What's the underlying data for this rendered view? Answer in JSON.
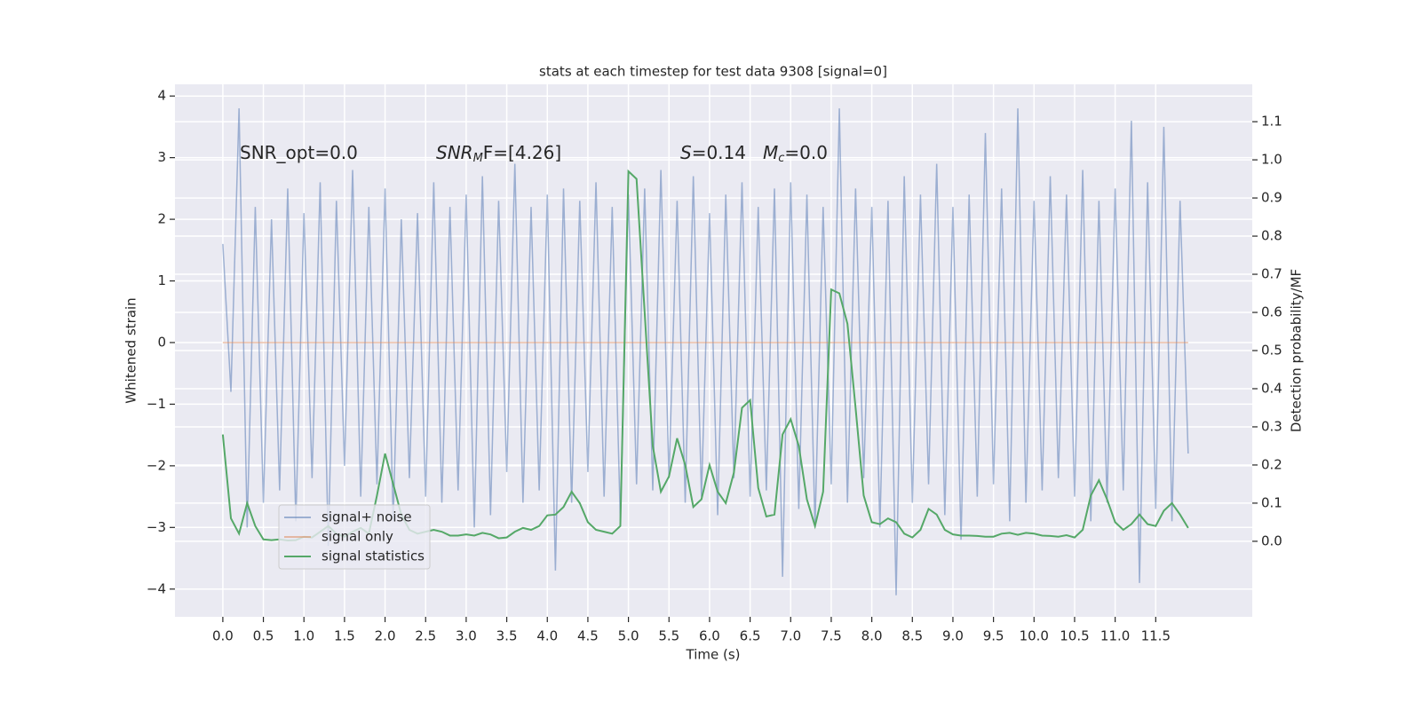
{
  "chart_data": {
    "type": "line",
    "title": "stats at each timestep for test data 9308 [signal=0]",
    "xlabel": "Time (s)",
    "ylabel": "Whitened strain",
    "y2label": "Detection probability/MF",
    "annotations": [
      [
        "SNR_opt=0.0"
      ],
      [
        "SNR",
        "M",
        "F=[4.26]"
      ],
      [
        "S",
        "=0.14"
      ],
      [
        "M",
        "c",
        "=0.0"
      ]
    ],
    "x": [
      0,
      0.1,
      0.2,
      0.3,
      0.4,
      0.5,
      0.6,
      0.7,
      0.8,
      0.9,
      1,
      1.1,
      1.2,
      1.3,
      1.4,
      1.5,
      1.6,
      1.7,
      1.8,
      1.9,
      2,
      2.1,
      2.2,
      2.3,
      2.4,
      2.5,
      2.6,
      2.7,
      2.8,
      2.9,
      3,
      3.1,
      3.2,
      3.3,
      3.4,
      3.5,
      3.6,
      3.7,
      3.8,
      3.9,
      4,
      4.1,
      4.2,
      4.3,
      4.4,
      4.5,
      4.6,
      4.7,
      4.8,
      4.9,
      5,
      5.1,
      5.2,
      5.3,
      5.4,
      5.5,
      5.6,
      5.7,
      5.8,
      5.9,
      6,
      6.1,
      6.2,
      6.3,
      6.4,
      6.5,
      6.6,
      6.7,
      6.8,
      6.9,
      7,
      7.1,
      7.2,
      7.3,
      7.4,
      7.5,
      7.6,
      7.7,
      7.8,
      7.9,
      8,
      8.1,
      8.2,
      8.3,
      8.4,
      8.5,
      8.6,
      8.7,
      8.8,
      8.9,
      9,
      9.1,
      9.2,
      9.3,
      9.4,
      9.5,
      9.6,
      9.7,
      9.8,
      9.9,
      10,
      10.1,
      10.2,
      10.3,
      10.4,
      10.5,
      10.6,
      10.7,
      10.8,
      10.9,
      11,
      11.1,
      11.2,
      11.3,
      11.4,
      11.5,
      11.6,
      11.7,
      11.8,
      11.9
    ],
    "series": [
      {
        "name": "signal+ noise",
        "color": "#4c72b0",
        "opacity": 0.5,
        "values": [
          1.6,
          -0.8,
          3.8,
          -3.0,
          2.2,
          -2.6,
          2.0,
          -2.4,
          2.5,
          -2.9,
          2.1,
          -2.2,
          2.6,
          -3.3,
          2.3,
          -2.0,
          2.8,
          -2.5,
          2.2,
          -2.3,
          2.5,
          -2.9,
          2.0,
          -2.2,
          2.1,
          -2.5,
          2.6,
          -2.6,
          2.2,
          -2.4,
          2.4,
          -3.0,
          2.7,
          -2.8,
          2.3,
          -2.1,
          2.9,
          -2.6,
          2.2,
          -2.4,
          2.4,
          -3.7,
          2.5,
          -2.6,
          2.3,
          -2.1,
          2.6,
          -2.5,
          2.2,
          -2.9,
          2.4,
          -2.3,
          2.5,
          -2.4,
          2.8,
          -2.2,
          2.3,
          -2.6,
          2.7,
          -2.5,
          2.1,
          -2.8,
          2.4,
          -2.2,
          2.6,
          -2.5,
          2.2,
          -2.4,
          2.5,
          -3.8,
          2.6,
          -2.7,
          2.4,
          -3.0,
          2.2,
          -2.3,
          3.8,
          -2.6,
          2.5,
          -2.2,
          2.2,
          -3.0,
          2.3,
          -4.1,
          2.7,
          -2.6,
          2.4,
          -2.3,
          2.9,
          -2.8,
          2.2,
          -3.2,
          2.4,
          -2.5,
          3.4,
          -2.3,
          2.5,
          -2.9,
          3.8,
          -2.6,
          2.3,
          -2.4,
          2.7,
          -2.2,
          2.4,
          -2.5,
          2.8,
          -2.9,
          2.3,
          -2.6,
          2.5,
          -2.4,
          3.6,
          -3.9,
          2.6,
          -2.7,
          3.5,
          -2.9,
          2.3,
          -1.8
        ]
      },
      {
        "name": "signal only",
        "color": "#dd8452",
        "opacity": 0.5,
        "values": [
          0,
          0,
          0,
          0,
          0,
          0,
          0,
          0,
          0,
          0,
          0,
          0,
          0,
          0,
          0,
          0,
          0,
          0,
          0,
          0,
          0,
          0,
          0,
          0,
          0,
          0,
          0,
          0,
          0,
          0,
          0,
          0,
          0,
          0,
          0,
          0,
          0,
          0,
          0,
          0,
          0,
          0,
          0,
          0,
          0,
          0,
          0,
          0,
          0,
          0,
          0,
          0,
          0,
          0,
          0,
          0,
          0,
          0,
          0,
          0,
          0,
          0,
          0,
          0,
          0,
          0,
          0,
          0,
          0,
          0,
          0,
          0,
          0,
          0,
          0,
          0,
          0,
          0,
          0,
          0,
          0,
          0,
          0,
          0,
          0,
          0,
          0,
          0,
          0,
          0,
          0,
          0,
          0,
          0,
          0,
          0,
          0,
          0,
          0,
          0,
          0,
          0,
          0,
          0,
          0,
          0,
          0,
          0,
          0,
          0,
          0,
          0,
          0,
          0,
          0,
          0,
          0,
          0,
          0,
          0
        ]
      },
      {
        "name": "signal statistics",
        "color": "#55a868",
        "opacity": 1,
        "axis": "y2",
        "values": [
          0.28,
          0.06,
          0.02,
          0.1,
          0.04,
          0.005,
          0.003,
          0.005,
          0.002,
          0.003,
          0.012,
          0.01,
          0.025,
          0.04,
          0.02,
          0.012,
          0.025,
          0.035,
          0.02,
          0.12,
          0.23,
          0.15,
          0.07,
          0.03,
          0.02,
          0.025,
          0.03,
          0.025,
          0.015,
          0.015,
          0.018,
          0.015,
          0.022,
          0.018,
          0.008,
          0.01,
          0.025,
          0.035,
          0.03,
          0.04,
          0.068,
          0.07,
          0.09,
          0.13,
          0.1,
          0.05,
          0.03,
          0.025,
          0.02,
          0.04,
          0.97,
          0.95,
          0.6,
          0.25,
          0.13,
          0.17,
          0.27,
          0.2,
          0.09,
          0.11,
          0.2,
          0.13,
          0.1,
          0.18,
          0.35,
          0.37,
          0.14,
          0.065,
          0.07,
          0.28,
          0.32,
          0.25,
          0.11,
          0.04,
          0.13,
          0.66,
          0.65,
          0.57,
          0.35,
          0.12,
          0.05,
          0.045,
          0.06,
          0.05,
          0.02,
          0.01,
          0.03,
          0.085,
          0.07,
          0.03,
          0.018,
          0.015,
          0.015,
          0.014,
          0.012,
          0.012,
          0.02,
          0.022,
          0.017,
          0.022,
          0.02,
          0.015,
          0.014,
          0.012,
          0.016,
          0.01,
          0.03,
          0.12,
          0.16,
          0.11,
          0.05,
          0.03,
          0.045,
          0.07,
          0.045,
          0.04,
          0.08,
          0.1,
          0.07,
          0.035
        ]
      }
    ],
    "xlim": [
      -0.59,
      12.69
    ],
    "xticks": [
      {
        "value": 0,
        "label": "0.0"
      },
      0.5,
      {
        "value": 1,
        "label": "1.0"
      },
      1.5,
      {
        "value": 2,
        "label": "2.0"
      },
      2.5,
      {
        "value": 3,
        "label": "3.0"
      },
      3.5,
      {
        "value": 4,
        "label": "4.0"
      },
      4.5,
      {
        "value": 5,
        "label": "5.0"
      },
      5.5,
      {
        "value": 6,
        "label": "6.0"
      },
      6.5,
      {
        "value": 7,
        "label": "7.0"
      },
      7.5,
      {
        "value": 8,
        "label": "8.0"
      },
      8.5,
      {
        "value": 9,
        "label": "9.0"
      },
      9.5,
      {
        "value": 10,
        "label": "10.0"
      },
      10.5,
      {
        "value": 11,
        "label": "11.0"
      },
      11.5
    ],
    "ylim": [
      -4.45,
      4.19
    ],
    "yticks": [
      {
        "value": -4,
        "label": "−4"
      },
      {
        "value": -3,
        "label": "−3"
      },
      {
        "value": -2,
        "label": "−2"
      },
      {
        "value": -1,
        "label": "−1"
      },
      0,
      1,
      2,
      3,
      4
    ],
    "y2lim": [
      -0.198,
      1.198
    ],
    "y2ticks": [
      {
        "value": 0,
        "label": "0.0"
      },
      0.1,
      0.2,
      0.3,
      0.4,
      0.5,
      0.6,
      0.7,
      0.8,
      0.9,
      {
        "value": 1,
        "label": "1.0"
      },
      1.1
    ],
    "grid": true,
    "legend": "lower left"
  }
}
